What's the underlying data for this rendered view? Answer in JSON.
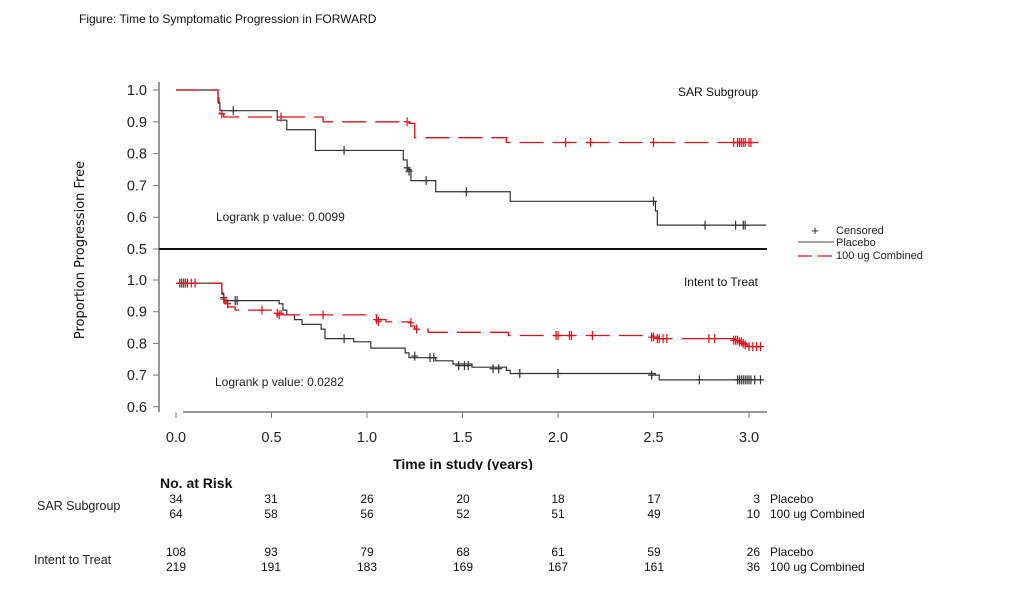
{
  "figure_title": "Figure: Time to Symptomatic Progression in FORWARD",
  "chart_data": {
    "type": "line",
    "subtype": "kaplan-meier",
    "title": "Time to Symptomatic Progression in FORWARD",
    "xlabel": "Time in study (years)",
    "ylabel": "Proportion Progression Free",
    "xlim": [
      0.0,
      3.1
    ],
    "x_ticks": [
      "0.0",
      "0.5",
      "1.0",
      "1.5",
      "2.0",
      "2.5",
      "3.0"
    ],
    "x_tick_values": [
      0.0,
      0.5,
      1.0,
      1.5,
      2.0,
      2.5,
      3.0
    ],
    "grid": false,
    "legend": {
      "placement": "right",
      "entries": [
        {
          "label": "Censored",
          "symbol": "+"
        },
        {
          "label": "Placebo",
          "color": "#333333",
          "style": "solid"
        },
        {
          "label": "100 ug Combined",
          "color": "#e0101a",
          "style": "dashed"
        }
      ]
    },
    "panels": [
      {
        "name": "SAR Subgroup",
        "ylim": [
          0.5,
          1.0
        ],
        "y_ticks": [
          "1.0",
          "0.9",
          "0.8",
          "0.7",
          "0.6",
          "0.5"
        ],
        "y_tick_values": [
          1.0,
          0.9,
          0.8,
          0.7,
          0.6,
          0.5
        ],
        "annotation": "Logrank p value: 0.0099",
        "series": [
          {
            "name": "Placebo",
            "color": "#333333",
            "steps": [
              [
                0.0,
                1.0
              ],
              [
                0.22,
                0.96
              ],
              [
                0.23,
                0.935
              ],
              [
                0.53,
                0.905
              ],
              [
                0.58,
                0.875
              ],
              [
                0.73,
                0.81
              ],
              [
                1.19,
                0.78
              ],
              [
                1.21,
                0.75
              ],
              [
                1.23,
                0.715
              ],
              [
                1.36,
                0.68
              ],
              [
                1.75,
                0.65
              ],
              [
                2.51,
                0.62
              ],
              [
                2.52,
                0.575
              ],
              [
                3.09,
                0.575
              ]
            ],
            "censored": [
              [
                0.3,
                0.935
              ],
              [
                0.88,
                0.81
              ],
              [
                1.21,
                0.755
              ],
              [
                1.22,
                0.745
              ],
              [
                1.31,
                0.715
              ],
              [
                1.52,
                0.68
              ],
              [
                2.5,
                0.65
              ],
              [
                2.77,
                0.575
              ],
              [
                2.93,
                0.575
              ],
              [
                2.97,
                0.575
              ],
              [
                2.98,
                0.575
              ]
            ]
          },
          {
            "name": "100 ug Combined",
            "color": "#e0101a",
            "steps": [
              [
                0.0,
                1.0
              ],
              [
                0.22,
                0.975
              ],
              [
                0.225,
                0.95
              ],
              [
                0.23,
                0.925
              ],
              [
                0.25,
                0.915
              ],
              [
                0.77,
                0.9
              ],
              [
                1.22,
                0.895
              ],
              [
                1.25,
                0.85
              ],
              [
                1.73,
                0.835
              ],
              [
                3.05,
                0.835
              ]
            ],
            "censored": [
              [
                0.24,
                0.925
              ],
              [
                0.55,
                0.915
              ],
              [
                1.21,
                0.9
              ],
              [
                2.04,
                0.835
              ],
              [
                2.17,
                0.835
              ],
              [
                2.5,
                0.835
              ],
              [
                2.92,
                0.835
              ],
              [
                2.94,
                0.835
              ],
              [
                2.95,
                0.835
              ],
              [
                2.96,
                0.835
              ],
              [
                2.97,
                0.835
              ],
              [
                2.98,
                0.835
              ],
              [
                3.0,
                0.835
              ],
              [
                3.01,
                0.835
              ]
            ]
          }
        ]
      },
      {
        "name": "Intent to Treat",
        "ylim": [
          0.6,
          1.0
        ],
        "y_ticks": [
          "1.0",
          "0.9",
          "0.8",
          "0.7",
          "0.6"
        ],
        "y_tick_values": [
          1.0,
          0.9,
          0.8,
          0.7,
          0.6
        ],
        "annotation": "Logrank p value: 0.0282",
        "series": [
          {
            "name": "Placebo",
            "color": "#333333",
            "steps": [
              [
                0.0,
                0.99
              ],
              [
                0.24,
                0.955
              ],
              [
                0.25,
                0.935
              ],
              [
                0.54,
                0.925
              ],
              [
                0.56,
                0.905
              ],
              [
                0.58,
                0.89
              ],
              [
                0.62,
                0.875
              ],
              [
                0.66,
                0.86
              ],
              [
                0.76,
                0.845
              ],
              [
                0.78,
                0.815
              ],
              [
                0.93,
                0.805
              ],
              [
                1.02,
                0.785
              ],
              [
                1.2,
                0.77
              ],
              [
                1.22,
                0.755
              ],
              [
                1.36,
                0.745
              ],
              [
                1.45,
                0.735
              ],
              [
                1.55,
                0.725
              ],
              [
                1.73,
                0.715
              ],
              [
                1.75,
                0.705
              ],
              [
                2.51,
                0.7
              ],
              [
                2.53,
                0.685
              ],
              [
                3.07,
                0.685
              ]
            ],
            "censored": [
              [
                0.02,
                0.99
              ],
              [
                0.03,
                0.99
              ],
              [
                0.04,
                0.99
              ],
              [
                0.25,
                0.945
              ],
              [
                0.31,
                0.935
              ],
              [
                0.32,
                0.935
              ],
              [
                0.88,
                0.815
              ],
              [
                1.25,
                0.76
              ],
              [
                1.33,
                0.755
              ],
              [
                1.35,
                0.755
              ],
              [
                1.48,
                0.73
              ],
              [
                1.51,
                0.73
              ],
              [
                1.53,
                0.73
              ],
              [
                1.66,
                0.72
              ],
              [
                1.69,
                0.72
              ],
              [
                1.8,
                0.705
              ],
              [
                2.0,
                0.705
              ],
              [
                2.49,
                0.7
              ],
              [
                2.74,
                0.685
              ],
              [
                2.94,
                0.685
              ],
              [
                2.95,
                0.685
              ],
              [
                2.96,
                0.685
              ],
              [
                2.97,
                0.685
              ],
              [
                2.98,
                0.685
              ],
              [
                2.99,
                0.685
              ],
              [
                3.0,
                0.685
              ],
              [
                3.01,
                0.685
              ],
              [
                3.03,
                0.685
              ],
              [
                3.06,
                0.685
              ]
            ]
          },
          {
            "name": "100 ug Combined",
            "color": "#e0101a",
            "steps": [
              [
                0.0,
                0.99
              ],
              [
                0.24,
                0.96
              ],
              [
                0.25,
                0.93
              ],
              [
                0.27,
                0.915
              ],
              [
                0.31,
                0.905
              ],
              [
                0.55,
                0.895
              ],
              [
                0.56,
                0.89
              ],
              [
                1.05,
                0.875
              ],
              [
                1.1,
                0.868
              ],
              [
                1.23,
                0.855
              ],
              [
                1.25,
                0.845
              ],
              [
                1.32,
                0.835
              ],
              [
                1.74,
                0.825
              ],
              [
                2.5,
                0.82
              ],
              [
                2.53,
                0.815
              ],
              [
                2.93,
                0.81
              ],
              [
                2.96,
                0.8
              ],
              [
                2.99,
                0.79
              ],
              [
                3.08,
                0.79
              ]
            ],
            "censored": [
              [
                0.04,
                0.99
              ],
              [
                0.05,
                0.99
              ],
              [
                0.06,
                0.99
              ],
              [
                0.08,
                0.99
              ],
              [
                0.1,
                0.99
              ],
              [
                0.25,
                0.94
              ],
              [
                0.27,
                0.925
              ],
              [
                0.45,
                0.905
              ],
              [
                0.53,
                0.895
              ],
              [
                0.54,
                0.89
              ],
              [
                0.77,
                0.89
              ],
              [
                1.05,
                0.875
              ],
              [
                1.06,
                0.87
              ],
              [
                1.23,
                0.865
              ],
              [
                1.26,
                0.845
              ],
              [
                1.99,
                0.825
              ],
              [
                2.0,
                0.825
              ],
              [
                2.06,
                0.825
              ],
              [
                2.07,
                0.825
              ],
              [
                2.18,
                0.825
              ],
              [
                2.49,
                0.82
              ],
              [
                2.5,
                0.82
              ],
              [
                2.52,
                0.815
              ],
              [
                2.53,
                0.815
              ],
              [
                2.55,
                0.815
              ],
              [
                2.57,
                0.815
              ],
              [
                2.79,
                0.815
              ],
              [
                2.82,
                0.815
              ],
              [
                2.92,
                0.81
              ],
              [
                2.93,
                0.81
              ],
              [
                2.94,
                0.81
              ],
              [
                2.95,
                0.805
              ],
              [
                2.96,
                0.805
              ],
              [
                2.97,
                0.8
              ],
              [
                2.98,
                0.795
              ],
              [
                3.0,
                0.79
              ],
              [
                3.02,
                0.79
              ],
              [
                3.04,
                0.79
              ],
              [
                3.06,
                0.79
              ]
            ]
          }
        ]
      }
    ]
  },
  "risk_table": {
    "title": "No. at Risk",
    "groups": [
      {
        "name": "SAR Subgroup",
        "rows": [
          {
            "treatment": "Placebo",
            "values": [
              "34",
              "31",
              "26",
              "20",
              "18",
              "17",
              "3"
            ]
          },
          {
            "treatment": "100 ug Combined",
            "values": [
              "64",
              "58",
              "56",
              "52",
              "51",
              "49",
              "10"
            ]
          }
        ]
      },
      {
        "name": "Intent to Treat",
        "rows": [
          {
            "treatment": "Placebo",
            "values": [
              "108",
              "93",
              "79",
              "68",
              "61",
              "59",
              "26"
            ]
          },
          {
            "treatment": "100 ug Combined",
            "values": [
              "219",
              "191",
              "183",
              "169",
              "167",
              "161",
              "36"
            ]
          }
        ]
      }
    ]
  }
}
